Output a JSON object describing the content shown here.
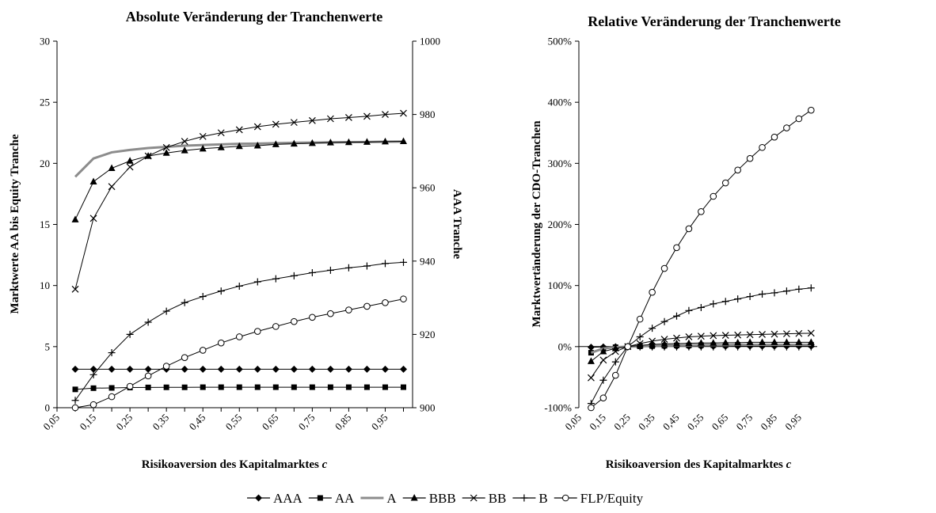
{
  "chart_data": [
    {
      "type": "line",
      "title": "Absolute Veränderung der Tranchenwerte",
      "xlabel": "Risikoaversion des Kapitalmarktes c",
      "ylabel": "Marktwerte AA bis Equity Tranche",
      "y2label": "AAA Tranche",
      "x_tick_labels": [
        "0,05",
        "0,15",
        "0,25",
        "0,35",
        "0,45",
        "0,55",
        "0,65",
        "0,75",
        "0,85",
        "0,95"
      ],
      "x": [
        0.1,
        0.15,
        0.2,
        0.25,
        0.3,
        0.35,
        0.4,
        0.45,
        0.5,
        0.55,
        0.6,
        0.65,
        0.7,
        0.75,
        0.8,
        0.85,
        0.9,
        0.95,
        1.0
      ],
      "xlim": [
        0.05,
        1.025
      ],
      "ylim": [
        0,
        30
      ],
      "y_ticks": [
        0,
        5,
        10,
        15,
        20,
        25,
        30
      ],
      "y2lim": [
        900,
        1000
      ],
      "y2_ticks": [
        900,
        920,
        940,
        960,
        980,
        1000
      ],
      "grid": false,
      "series": [
        {
          "name": "AAA",
          "axis": "right",
          "marker": "diamond",
          "color": "#000000",
          "values": [
            910.5,
            910.5,
            910.5,
            910.5,
            910.5,
            910.5,
            910.5,
            910.5,
            910.5,
            910.5,
            910.5,
            910.5,
            910.5,
            910.5,
            910.5,
            910.5,
            910.5,
            910.5,
            910.5
          ]
        },
        {
          "name": "AA",
          "marker": "square",
          "color": "#000000",
          "values": [
            1.5,
            1.6,
            1.62,
            1.65,
            1.66,
            1.67,
            1.67,
            1.68,
            1.68,
            1.68,
            1.68,
            1.68,
            1.68,
            1.68,
            1.68,
            1.68,
            1.68,
            1.68,
            1.68
          ]
        },
        {
          "name": "A",
          "marker": "none",
          "color": "#8c8c8c",
          "width": 3,
          "values": [
            18.9,
            20.4,
            20.9,
            21.1,
            21.25,
            21.35,
            21.45,
            21.5,
            21.55,
            21.6,
            21.62,
            21.65,
            21.68,
            21.7,
            21.72,
            21.74,
            21.75,
            21.77,
            21.78
          ]
        },
        {
          "name": "BBB",
          "marker": "triangle",
          "color": "#000000",
          "values": [
            15.4,
            18.5,
            19.6,
            20.2,
            20.6,
            20.85,
            21.05,
            21.2,
            21.3,
            21.4,
            21.45,
            21.55,
            21.6,
            21.65,
            21.7,
            21.72,
            21.75,
            21.78,
            21.8
          ]
        },
        {
          "name": "BB",
          "marker": "x",
          "color": "#000000",
          "values": [
            9.7,
            15.5,
            18.1,
            19.7,
            20.6,
            21.3,
            21.8,
            22.2,
            22.5,
            22.75,
            23.0,
            23.2,
            23.35,
            23.5,
            23.65,
            23.75,
            23.85,
            24.0,
            24.1
          ]
        },
        {
          "name": "B",
          "marker": "plus",
          "color": "#000000",
          "values": [
            0.6,
            2.7,
            4.5,
            6.0,
            7.0,
            7.9,
            8.6,
            9.1,
            9.55,
            9.95,
            10.3,
            10.55,
            10.8,
            11.05,
            11.25,
            11.45,
            11.6,
            11.8,
            11.9
          ]
        },
        {
          "name": "FLP/Equity",
          "marker": "circle",
          "color": "#000000",
          "values": [
            0.0,
            0.25,
            0.9,
            1.75,
            2.6,
            3.4,
            4.1,
            4.7,
            5.3,
            5.8,
            6.25,
            6.65,
            7.05,
            7.4,
            7.7,
            8.0,
            8.3,
            8.6,
            8.9
          ]
        }
      ]
    },
    {
      "type": "line",
      "title": "Relative Veränderung der Tranchenwerte",
      "xlabel": "Risikoaversion des Kapitalmarktes c",
      "ylabel": "Marktwertänderung der CDO-Tranchen",
      "x_tick_labels": [
        "0,05",
        "0,15",
        "0,25",
        "0,35",
        "0,45",
        "0,55",
        "0,65",
        "0,75",
        "0,85",
        "0,95"
      ],
      "x": [
        0.1,
        0.15,
        0.2,
        0.25,
        0.3,
        0.35,
        0.4,
        0.45,
        0.5,
        0.55,
        0.6,
        0.65,
        0.7,
        0.75,
        0.8,
        0.85,
        0.9,
        0.95,
        1.0
      ],
      "xlim": [
        0.05,
        1.025
      ],
      "ylim": [
        -100,
        500
      ],
      "y_ticks": [
        -100,
        0,
        100,
        200,
        300,
        400,
        500
      ],
      "y_tick_labels": [
        "-100%",
        "0%",
        "100%",
        "200%",
        "300%",
        "400%",
        "500%"
      ],
      "grid": false,
      "series": [
        {
          "name": "AAA",
          "marker": "diamond",
          "color": "#000000",
          "values": [
            -1,
            -0.5,
            -0.2,
            0,
            0.2,
            0.3,
            0.4,
            0.5,
            0.5,
            0.6,
            0.6,
            0.6,
            0.7,
            0.7,
            0.7,
            0.7,
            0.7,
            0.7,
            0.7
          ]
        },
        {
          "name": "AA",
          "marker": "square",
          "color": "#000000",
          "values": [
            -10,
            -3,
            -1,
            0,
            0.5,
            1,
            1.5,
            2,
            2,
            2.5,
            2.5,
            2.5,
            3,
            3,
            3,
            3,
            3,
            3,
            3
          ]
        },
        {
          "name": "A",
          "marker": "none",
          "color": "#8c8c8c",
          "width": 3,
          "values": [
            -10,
            -3,
            -1,
            0,
            0.5,
            1,
            1.5,
            2,
            2,
            2.5,
            2.5,
            2.5,
            3,
            3,
            3,
            3,
            3,
            3,
            3
          ]
        },
        {
          "name": "BBB",
          "marker": "triangle",
          "color": "#000000",
          "values": [
            -24,
            -8,
            -3,
            0,
            2,
            3.5,
            4.5,
            5,
            5.5,
            6,
            6,
            6.5,
            6.5,
            7,
            7,
            7,
            7,
            7,
            7
          ]
        },
        {
          "name": "BB",
          "marker": "x",
          "color": "#000000",
          "values": [
            -51,
            -22,
            -8,
            0,
            5,
            9,
            12,
            14,
            16,
            17,
            18,
            18.5,
            19,
            19.5,
            20,
            20.5,
            21,
            21.5,
            22
          ]
        },
        {
          "name": "B",
          "marker": "plus",
          "color": "#000000",
          "values": [
            -93,
            -55,
            -25,
            0,
            16,
            30,
            41,
            50,
            59,
            64,
            70,
            74,
            78,
            82,
            86,
            88,
            91,
            94,
            96
          ]
        },
        {
          "name": "FLP/Equity",
          "marker": "circle",
          "color": "#000000",
          "values": [
            -100,
            -84,
            -47,
            0,
            45,
            89,
            128,
            162,
            193,
            221,
            246,
            268,
            289,
            308,
            326,
            343,
            358,
            373,
            387
          ]
        }
      ]
    }
  ],
  "legend": {
    "position": "bottom-center",
    "entries": [
      {
        "name": "AAA",
        "marker": "diamond",
        "color": "#000000"
      },
      {
        "name": "AA",
        "marker": "square",
        "color": "#000000"
      },
      {
        "name": "A",
        "marker": "none",
        "color": "#8c8c8c"
      },
      {
        "name": "BBB",
        "marker": "triangle",
        "color": "#000000"
      },
      {
        "name": "BB",
        "marker": "x",
        "color": "#000000"
      },
      {
        "name": "B",
        "marker": "plus",
        "color": "#000000"
      },
      {
        "name": "FLP/Equity",
        "marker": "circle",
        "color": "#000000"
      }
    ]
  }
}
